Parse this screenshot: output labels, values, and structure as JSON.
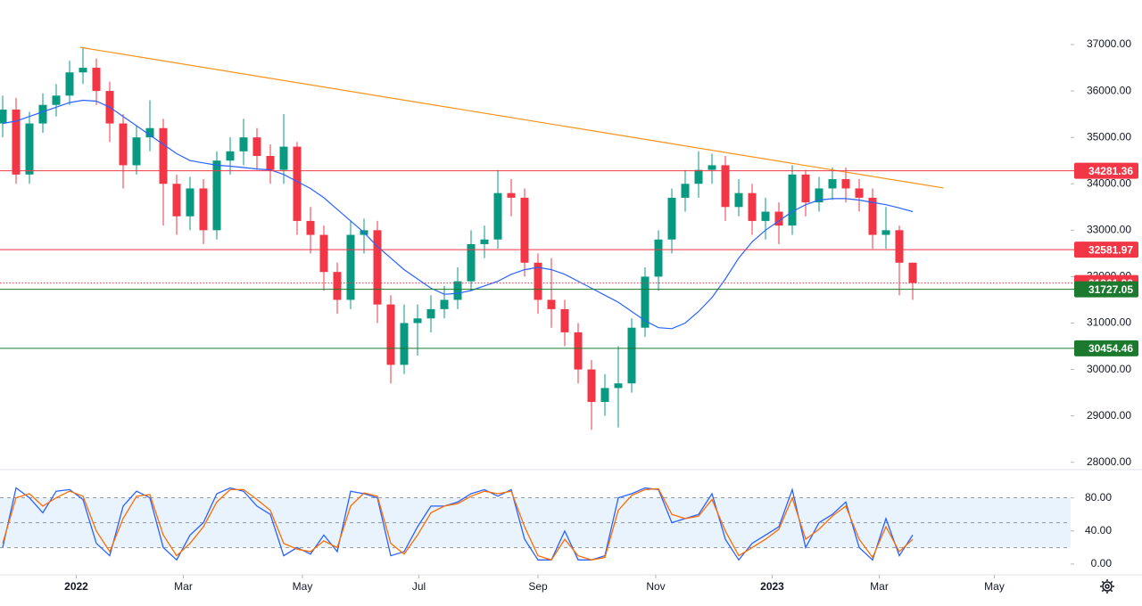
{
  "chart_data": [
    {
      "type": "candlestick",
      "xlim": [
        -0.2,
        79.8
      ],
      "ylim": [
        27880,
        37960
      ],
      "yticks": [
        {
          "value": 28000,
          "label": "28000.00"
        },
        {
          "value": 29000,
          "label": "29000.00"
        },
        {
          "value": 30000,
          "label": "30000.00"
        },
        {
          "value": 31000,
          "label": "31000.00"
        },
        {
          "value": 32000,
          "label": "32000.00"
        },
        {
          "value": 33000,
          "label": "33000.00"
        },
        {
          "value": 34000,
          "label": "34000.00"
        },
        {
          "value": 35000,
          "label": "35000.00"
        },
        {
          "value": 36000,
          "label": "36000.00"
        },
        {
          "value": 37000,
          "label": "37000.00"
        }
      ],
      "up_color": "#089981",
      "down_color": "#f23645",
      "open": [
        35300,
        35600,
        34200,
        35300,
        35700,
        35900,
        36400,
        36500,
        36000,
        35300,
        34400,
        35000,
        35200,
        34000,
        33300,
        33900,
        33000,
        34500,
        34700,
        35000,
        34600,
        34300,
        34800,
        33200,
        32900,
        32100,
        31500,
        32900,
        33000,
        31400,
        30100,
        31000,
        31100,
        31300,
        31500,
        31900,
        32700,
        32800,
        33800,
        33700,
        32300,
        31500,
        31300,
        30800,
        30000,
        29300,
        29600,
        29700,
        30900,
        32000,
        32800,
        33700,
        34000,
        34300,
        34400,
        33500,
        33800,
        33200,
        33400,
        33100,
        34200,
        33600,
        33900,
        34100,
        33900,
        33700,
        32900,
        33000,
        32300
      ],
      "high": [
        35900,
        35850,
        35550,
        35950,
        36150,
        36650,
        36950,
        36700,
        36200,
        35500,
        35250,
        35800,
        35400,
        34200,
        34150,
        34100,
        34700,
        35000,
        35400,
        35200,
        34850,
        35500,
        34900,
        33500,
        33100,
        32300,
        33200,
        33250,
        33200,
        31600,
        31400,
        31400,
        31600,
        31800,
        32200,
        33000,
        33100,
        34300,
        34100,
        33900,
        32500,
        32400,
        31500,
        31000,
        30200,
        29900,
        30500,
        31100,
        32200,
        33000,
        33900,
        34300,
        34700,
        34650,
        34600,
        34100,
        34000,
        33700,
        33600,
        34400,
        34300,
        34150,
        34350,
        34350,
        34100,
        33900,
        33500,
        33100,
        32300
      ],
      "low": [
        35000,
        34000,
        34000,
        35100,
        35450,
        35700,
        36150,
        35700,
        34900,
        33900,
        34200,
        34700,
        33100,
        32900,
        33000,
        32700,
        32800,
        34200,
        34400,
        34300,
        34000,
        34000,
        32900,
        32500,
        31700,
        31200,
        31300,
        32500,
        31000,
        29700,
        29900,
        30300,
        30800,
        31100,
        31300,
        31700,
        32400,
        32600,
        33300,
        32000,
        31200,
        30900,
        30500,
        29700,
        28700,
        29000,
        28750,
        29500,
        30700,
        31700,
        32500,
        33400,
        33700,
        34000,
        33200,
        33300,
        32900,
        32800,
        32700,
        32900,
        33300,
        33400,
        33650,
        33600,
        33400,
        32600,
        32600,
        31600,
        31500
      ],
      "close": [
        35600,
        34200,
        35300,
        35700,
        35900,
        36400,
        36500,
        36000,
        35300,
        34400,
        35000,
        35200,
        34000,
        33300,
        33900,
        33000,
        34500,
        34700,
        35000,
        34600,
        34300,
        34800,
        33200,
        32900,
        32100,
        31500,
        32900,
        33000,
        31400,
        30100,
        31000,
        31100,
        31300,
        31500,
        31900,
        32700,
        32800,
        33800,
        33700,
        32300,
        31500,
        31300,
        30800,
        30000,
        29300,
        29600,
        29700,
        30900,
        32000,
        32800,
        33700,
        34000,
        34300,
        34400,
        33500,
        33800,
        33200,
        33400,
        33100,
        34200,
        33600,
        33900,
        34100,
        33900,
        33700,
        32900,
        33000,
        32300,
        31861.99
      ],
      "ma": {
        "color": "#2962ff",
        "values": [
          35300,
          35350,
          35450,
          35550,
          35650,
          35750,
          35800,
          35780,
          35650,
          35450,
          35250,
          35050,
          34850,
          34650,
          34500,
          34450,
          34400,
          34380,
          34350,
          34320,
          34300,
          34200,
          34050,
          33900,
          33700,
          33450,
          33200,
          32950,
          32650,
          32400,
          32150,
          31950,
          31750,
          31620,
          31640,
          31700,
          31800,
          31900,
          32050,
          32150,
          32200,
          32150,
          32050,
          31900,
          31750,
          31600,
          31450,
          31250,
          31050,
          30900,
          30880,
          31000,
          31250,
          31550,
          31950,
          32400,
          32750,
          33000,
          33200,
          33400,
          33550,
          33650,
          33680,
          33680,
          33650,
          33600,
          33550,
          33480,
          33400
        ]
      },
      "trendline": {
        "color": "#f7931a",
        "x": [
          5.8,
          70.3
        ],
        "y": [
          36940,
          33910
        ]
      },
      "levels": [
        {
          "value": 34281.36,
          "color": "#f23645",
          "style": "solid"
        },
        {
          "value": 32581.97,
          "color": "#f23645",
          "style": "solid"
        },
        {
          "value": 31861.99,
          "color": "#f23645",
          "style": "dotted"
        },
        {
          "value": 31727.05,
          "color": "#1b7a2e",
          "style": "solid"
        },
        {
          "value": 30454.46,
          "color": "#1b7a2e",
          "style": "solid"
        }
      ]
    },
    {
      "type": "line",
      "xlim": [
        -0.2,
        79.8
      ],
      "ylim": [
        -13,
        113
      ],
      "yticks": [
        {
          "value": 0,
          "label": "0.00"
        },
        {
          "value": 40,
          "label": "40.00"
        },
        {
          "value": 80,
          "label": "80.00"
        }
      ],
      "xticks": [
        {
          "value": 5.5,
          "label": "2022"
        },
        {
          "value": 13.5,
          "label": "Mar"
        },
        {
          "value": 22.4,
          "label": "May"
        },
        {
          "value": 31.1,
          "label": "Jul"
        },
        {
          "value": 40,
          "label": "Sep"
        },
        {
          "value": 48.8,
          "label": "Nov"
        },
        {
          "value": 57.5,
          "label": "2023"
        },
        {
          "value": 65.5,
          "label": "Mar"
        },
        {
          "value": 74.1,
          "label": "May"
        }
      ],
      "band": [
        20,
        80
      ],
      "band_color": "#e8f3fd",
      "hlines": [
        80,
        50,
        20
      ],
      "series": [
        {
          "color": "#2962ff",
          "values": [
            20,
            92,
            80,
            62,
            88,
            90,
            78,
            25,
            10,
            70,
            88,
            80,
            20,
            5,
            35,
            50,
            85,
            92,
            88,
            70,
            60,
            10,
            20,
            12,
            35,
            15,
            88,
            85,
            80,
            10,
            15,
            45,
            70,
            70,
            75,
            85,
            90,
            82,
            90,
            30,
            5,
            5,
            40,
            5,
            5,
            10,
            80,
            85,
            92,
            90,
            50,
            55,
            60,
            85,
            30,
            5,
            25,
            35,
            45,
            90,
            20,
            50,
            60,
            75,
            20,
            5,
            55,
            10,
            35
          ]
        },
        {
          "color": "#ff6d00",
          "values": [
            25,
            80,
            85,
            70,
            80,
            88,
            82,
            40,
            15,
            55,
            82,
            84,
            35,
            10,
            25,
            45,
            75,
            90,
            90,
            78,
            65,
            25,
            18,
            15,
            28,
            20,
            70,
            86,
            82,
            25,
            12,
            35,
            62,
            70,
            73,
            82,
            88,
            85,
            88,
            45,
            10,
            5,
            30,
            10,
            5,
            8,
            65,
            83,
            90,
            91,
            60,
            55,
            58,
            78,
            40,
            10,
            20,
            30,
            42,
            80,
            30,
            42,
            58,
            70,
            30,
            8,
            45,
            15,
            30
          ]
        }
      ]
    }
  ]
}
